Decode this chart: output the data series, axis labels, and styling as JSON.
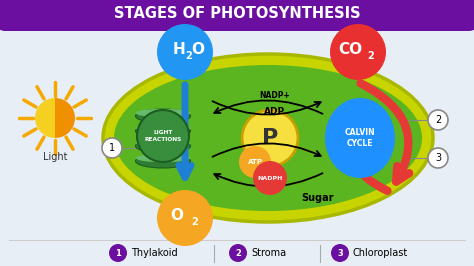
{
  "title": "STAGES OF PHOTOSYNTHESIS",
  "title_bg": "#6b0fa0",
  "title_color": "#ffffff",
  "bg_color": "#ffffff",
  "chloroplast_outer_color": "#c8d400",
  "chloroplast_outer_edge": "#a8b800",
  "chloroplast_inner_color": "#5ab520",
  "sun_color_left": "#f5d020",
  "sun_color_right": "#f09000",
  "sun_rays_color": "#f5a800",
  "light_text": "Light",
  "h2o_color": "#2196f3",
  "co2_color": "#e83030",
  "o2_color": "#f5a623",
  "thylakoid_disc_dark": "#2e7d32",
  "thylakoid_disc_light": "#66bb6a",
  "thylakoid_label_bg": "#388e3c",
  "thylakoid_label_text": "LIGHT\nREACTIONS",
  "p_color": "#f5e040",
  "p_edge": "#c8a000",
  "p_text": "P",
  "calvin_color": "#1e90ff",
  "calvin_text": "CALVIN\nCYCLE",
  "atp_color": "#f5a623",
  "atp_text": "ATP",
  "nadph_color": "#e53935",
  "nadph_text": "NADPH",
  "nadp_text": "NADP+",
  "adp_text": "ADP",
  "sugar_text": "Sugar",
  "red_arrow_color": "#e53935",
  "blue_arrow_color": "#1e7fd4",
  "legend_color": "#6b0fa0",
  "legend_items": [
    {
      "num": "1",
      "label": "Thylakoid"
    },
    {
      "num": "2",
      "label": "Stroma"
    },
    {
      "num": "3",
      "label": "Chloroplast"
    }
  ]
}
